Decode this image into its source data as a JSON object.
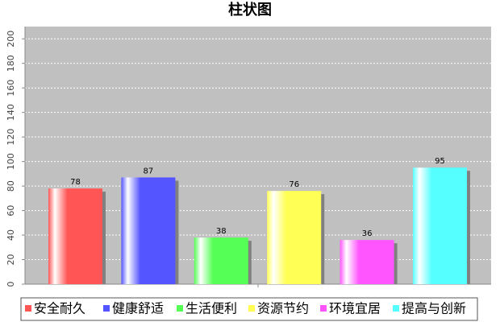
{
  "chart_data": {
    "type": "bar",
    "title": "柱状图",
    "categories": [
      null
    ],
    "series": [
      {
        "name": "安全耐久",
        "color": "#ff5555",
        "values": [
          78
        ]
      },
      {
        "name": "健康舒适",
        "color": "#5555ff",
        "values": [
          87
        ]
      },
      {
        "name": "生活便利",
        "color": "#55ff55",
        "values": [
          38
        ]
      },
      {
        "name": "资源节约",
        "color": "#ffff55",
        "values": [
          76
        ]
      },
      {
        "name": "环境宜居",
        "color": "#ff55ff",
        "values": [
          36
        ]
      },
      {
        "name": "提高与创新",
        "color": "#55ffff",
        "values": [
          95
        ]
      }
    ],
    "ylim": [
      0,
      210
    ],
    "yticks": [
      0,
      20,
      40,
      60,
      80,
      100,
      120,
      140,
      160,
      180,
      200
    ],
    "grid": true,
    "legend": "bottom"
  }
}
